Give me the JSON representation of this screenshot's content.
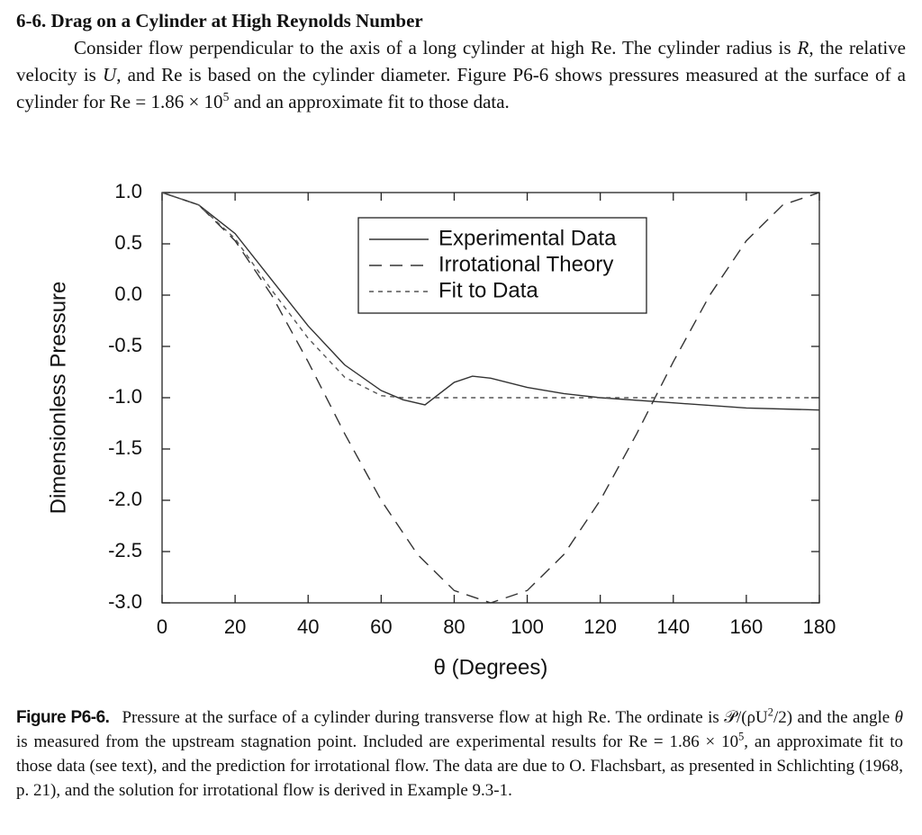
{
  "problem": {
    "title": "6-6. Drag on a Cylinder at High Reynolds Number",
    "segments": [
      "Consider flow perpendicular to the axis of a long cylinder at high Re. The cylinder radius is ",
      "R",
      ", the relative velocity is ",
      "U",
      ", and Re is based on the cylinder diameter. Figure P6-6 shows pressures measured at the surface of a cylinder for Re = 1.86 × 10",
      "5",
      " and an approximate fit to those data."
    ]
  },
  "chart_data": {
    "type": "line",
    "xlabel": "θ (Degrees)",
    "ylabel": "Dimensionless Pressure",
    "xlim": [
      0,
      180
    ],
    "xticks": [
      0,
      20,
      40,
      60,
      80,
      100,
      120,
      140,
      160,
      180
    ],
    "ylim": [
      -3,
      1
    ],
    "yticks": [
      {
        "value": 1,
        "label": "1.0"
      },
      0.5,
      {
        "value": 0,
        "label": "0.0"
      },
      -0.5,
      {
        "value": -1,
        "label": "-1.0"
      },
      -1.5,
      {
        "value": -2,
        "label": "-2.0"
      },
      -2.5,
      {
        "value": -3,
        "label": "-3.0"
      }
    ],
    "grid": false,
    "legend": "upper center",
    "series": [
      {
        "name": "Experimental Data",
        "color": "#333333",
        "style": "solid",
        "x": [
          0,
          10,
          20,
          30,
          40,
          50,
          60,
          66,
          72,
          80,
          85,
          90,
          100,
          110,
          120,
          140,
          160,
          180
        ],
        "values": [
          1,
          0.88,
          0.6,
          0.15,
          -0.3,
          -0.68,
          -0.93,
          -1.02,
          -1.07,
          -0.85,
          -0.79,
          -0.81,
          -0.9,
          -0.96,
          -1.0,
          -1.05,
          -1.1,
          -1.12
        ]
      },
      {
        "name": "Irrotational Theory",
        "color": "#333333",
        "style": "long-dash",
        "x": [
          0,
          10,
          20,
          30,
          40,
          50,
          60,
          70,
          80,
          90,
          100,
          110,
          120,
          130,
          140,
          150,
          160,
          170,
          180
        ],
        "values": [
          1,
          0.88,
          0.53,
          0,
          -0.65,
          -1.35,
          -2,
          -2.53,
          -2.88,
          -3,
          -2.88,
          -2.53,
          -2,
          -1.35,
          -0.65,
          0,
          0.53,
          0.88,
          1
        ]
      },
      {
        "name": "Fit to Data",
        "color": "#555555",
        "style": "short-dash",
        "x": [
          0,
          10,
          20,
          30,
          40,
          50,
          60,
          66,
          180
        ],
        "values": [
          1,
          0.88,
          0.55,
          0.05,
          -0.42,
          -0.8,
          -0.98,
          -1,
          -1
        ]
      }
    ]
  },
  "caption": {
    "label": "Figure P6-6.",
    "segments": [
      "Pressure at the surface of a cylinder during transverse flow at high Re. The ordinate is 𝒫/(ρU",
      "2",
      "/2) and the angle ",
      "θ",
      " is measured from the upstream stagnation point. Included are experimental results for Re = 1.86 × 10",
      "5",
      ", an approximate fit to those data (see text), and the prediction for irrotational flow. The data are due to O. Flachsbart, as presented in Schlichting (1968, p. 21), and the solution for irrotational flow is derived in Example 9.3-1."
    ]
  }
}
